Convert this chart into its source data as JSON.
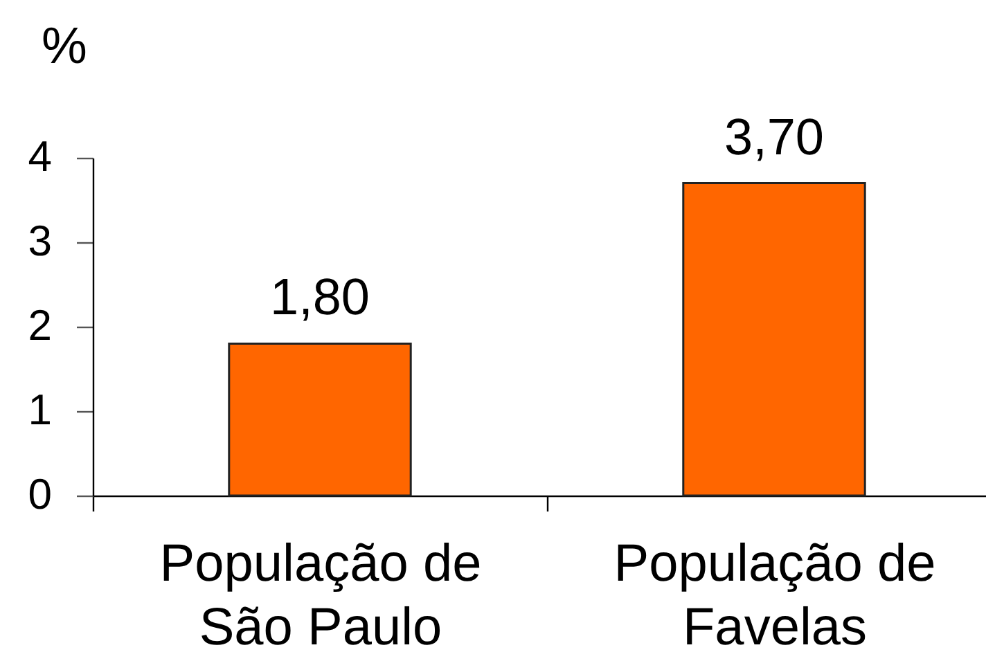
{
  "chart_data": {
    "type": "bar",
    "ylabel": "%",
    "categories": [
      "População de São Paulo",
      "População de Favelas"
    ],
    "values": [
      1.8,
      3.7
    ],
    "value_labels": [
      "1,80",
      "3,70"
    ],
    "color": "#ff6600",
    "ylim": [
      0,
      4
    ],
    "yticks": [
      0,
      1,
      2,
      3,
      4
    ],
    "grid": false
  }
}
